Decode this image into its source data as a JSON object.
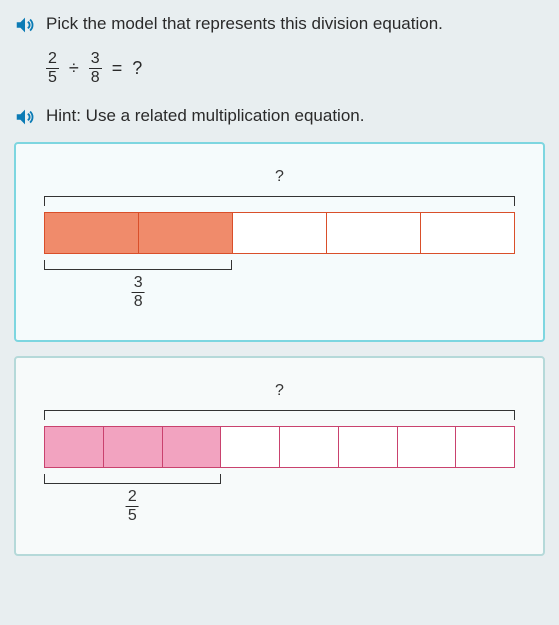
{
  "prompt": {
    "question_text": "Pick the model that represents this division equation.",
    "hint_text": "Hint: Use a related multiplication equation."
  },
  "equation": {
    "frac1": {
      "num": "2",
      "den": "5"
    },
    "op": "÷",
    "frac2": {
      "num": "3",
      "den": "8"
    },
    "eq": "=",
    "result": "?"
  },
  "icons": {
    "speaker_color": "#0b7bb5"
  },
  "choices": [
    {
      "border_color": "#7dd6e0",
      "background": "#f5fbfc",
      "total_cells": 5,
      "filled_cells": 2,
      "fill_color": "#f08b6b",
      "cell_border": "#d94f2a",
      "empty_fill": "#ffffff",
      "top_label": "?",
      "bottom_label": {
        "num": "3",
        "den": "8"
      },
      "bottom_bracket_pct": 40
    },
    {
      "border_color": "#b5d9d9",
      "background": "#f7fafa",
      "total_cells": 8,
      "filled_cells": 3,
      "fill_color": "#f2a3c0",
      "cell_border": "#c9426e",
      "empty_fill": "#ffffff",
      "top_label": "?",
      "bottom_label": {
        "num": "2",
        "den": "5"
      },
      "bottom_bracket_pct": 37.5
    }
  ]
}
